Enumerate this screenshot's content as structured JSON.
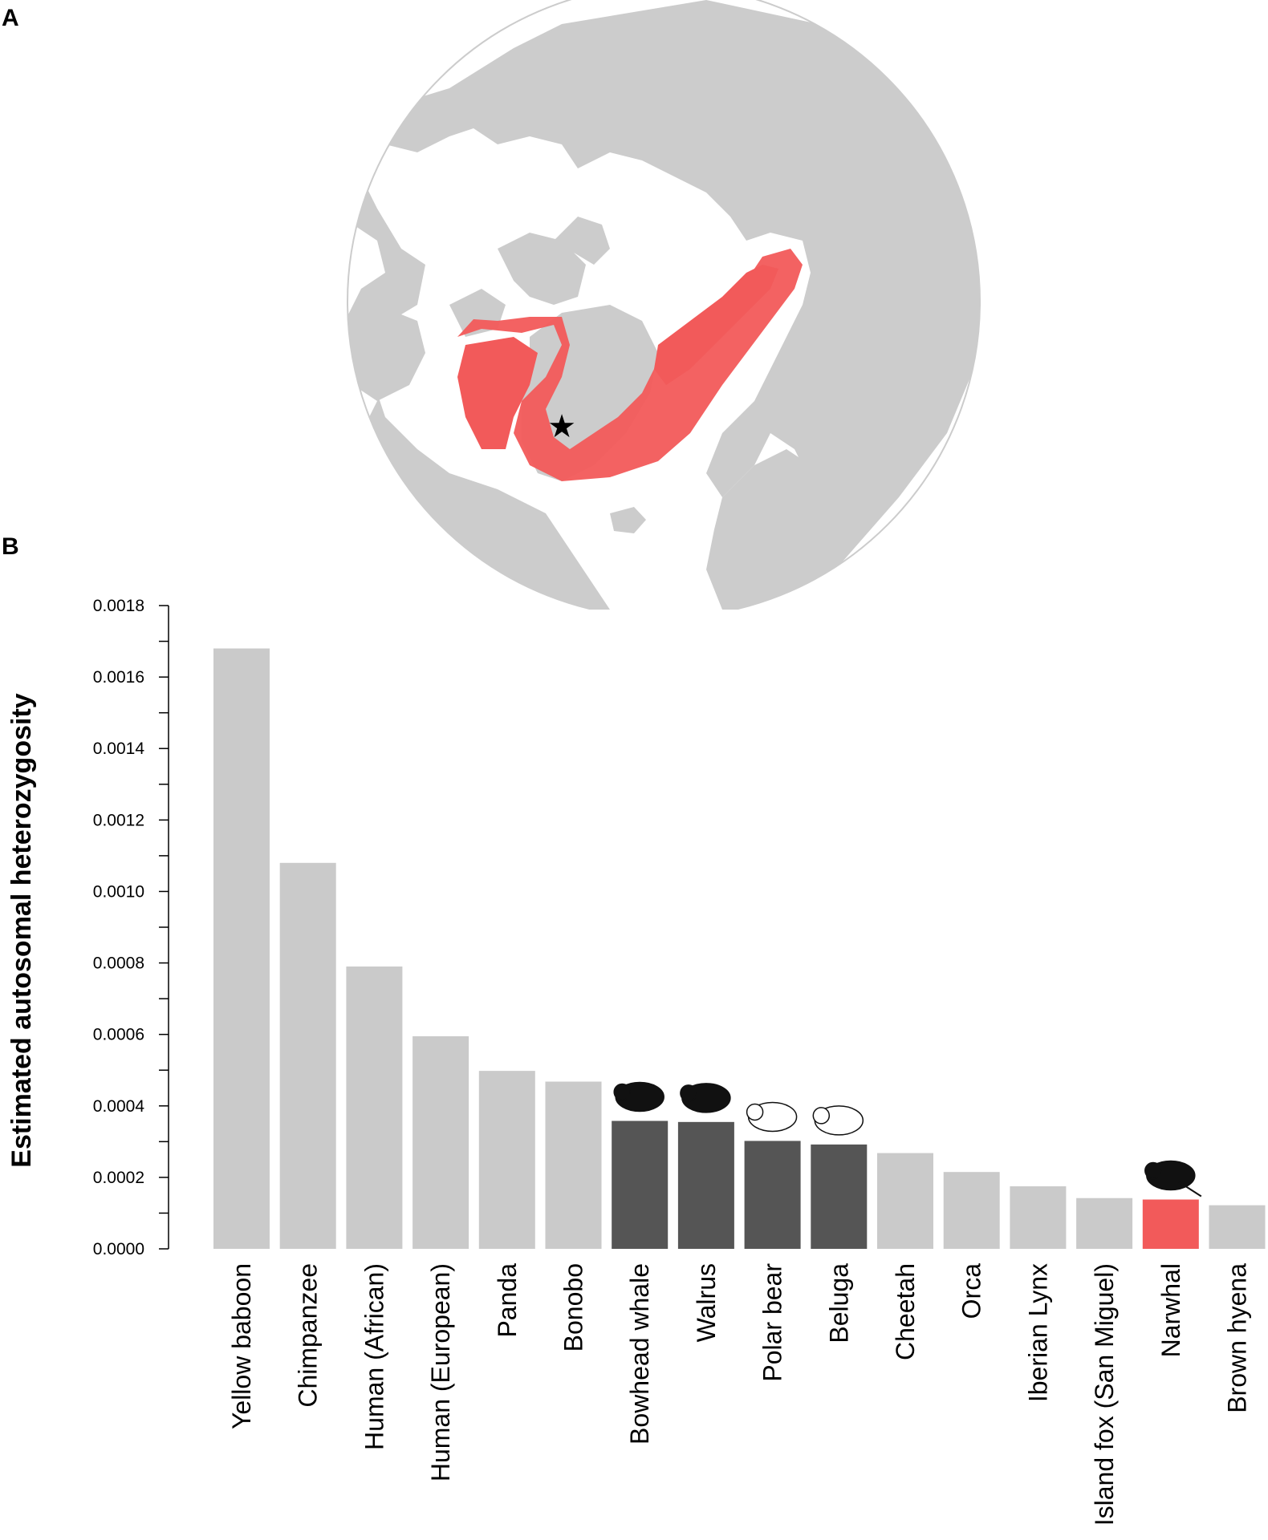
{
  "panels": {
    "a_label": "A",
    "b_label": "B"
  },
  "map": {
    "ocean_color": "#ffffff",
    "land_color": "#cccccc",
    "range_color": "#f25a5a",
    "marker_icon": "star-icon"
  },
  "chart_data": {
    "type": "bar",
    "title": "",
    "xlabel": "",
    "ylabel": "Estimated autosomal heterozygosity",
    "ylim": [
      0,
      0.0018
    ],
    "yticks": [
      "0.0000",
      "0.0002",
      "0.0004",
      "0.0006",
      "0.0008",
      "0.0010",
      "0.0012",
      "0.0014",
      "0.0016",
      "0.0018"
    ],
    "categories": [
      "Yellow baboon",
      "Chimpanzee",
      "Human (African)",
      "Human (European)",
      "Panda",
      "Bonobo",
      "Bowhead whale",
      "Walrus",
      "Polar bear",
      "Beluga",
      "Cheetah",
      "Orca",
      "Iberian Lynx",
      "Island fox (San Miguel)",
      "Narwhal",
      "Brown hyena"
    ],
    "values": [
      0.00168,
      0.00108,
      0.00079,
      0.000595,
      0.000498,
      0.000468,
      0.000358,
      0.000355,
      0.000302,
      0.000292,
      0.000268,
      0.000215,
      0.000175,
      0.000142,
      0.000138,
      0.000122
    ],
    "groups": [
      "other",
      "other",
      "other",
      "other",
      "other",
      "other",
      "arctic",
      "arctic",
      "arctic",
      "arctic",
      "other",
      "other",
      "other",
      "other",
      "narwhal",
      "other"
    ],
    "colors": {
      "other": "#cacaca",
      "arctic": "#555555",
      "narwhal": "#f25a5a"
    },
    "icons": [
      "",
      "",
      "",
      "",
      "",
      "",
      "bowhead-whale-icon",
      "walrus-icon",
      "polar-bear-icon",
      "beluga-icon",
      "",
      "",
      "",
      "",
      "narwhal-icon",
      ""
    ]
  }
}
